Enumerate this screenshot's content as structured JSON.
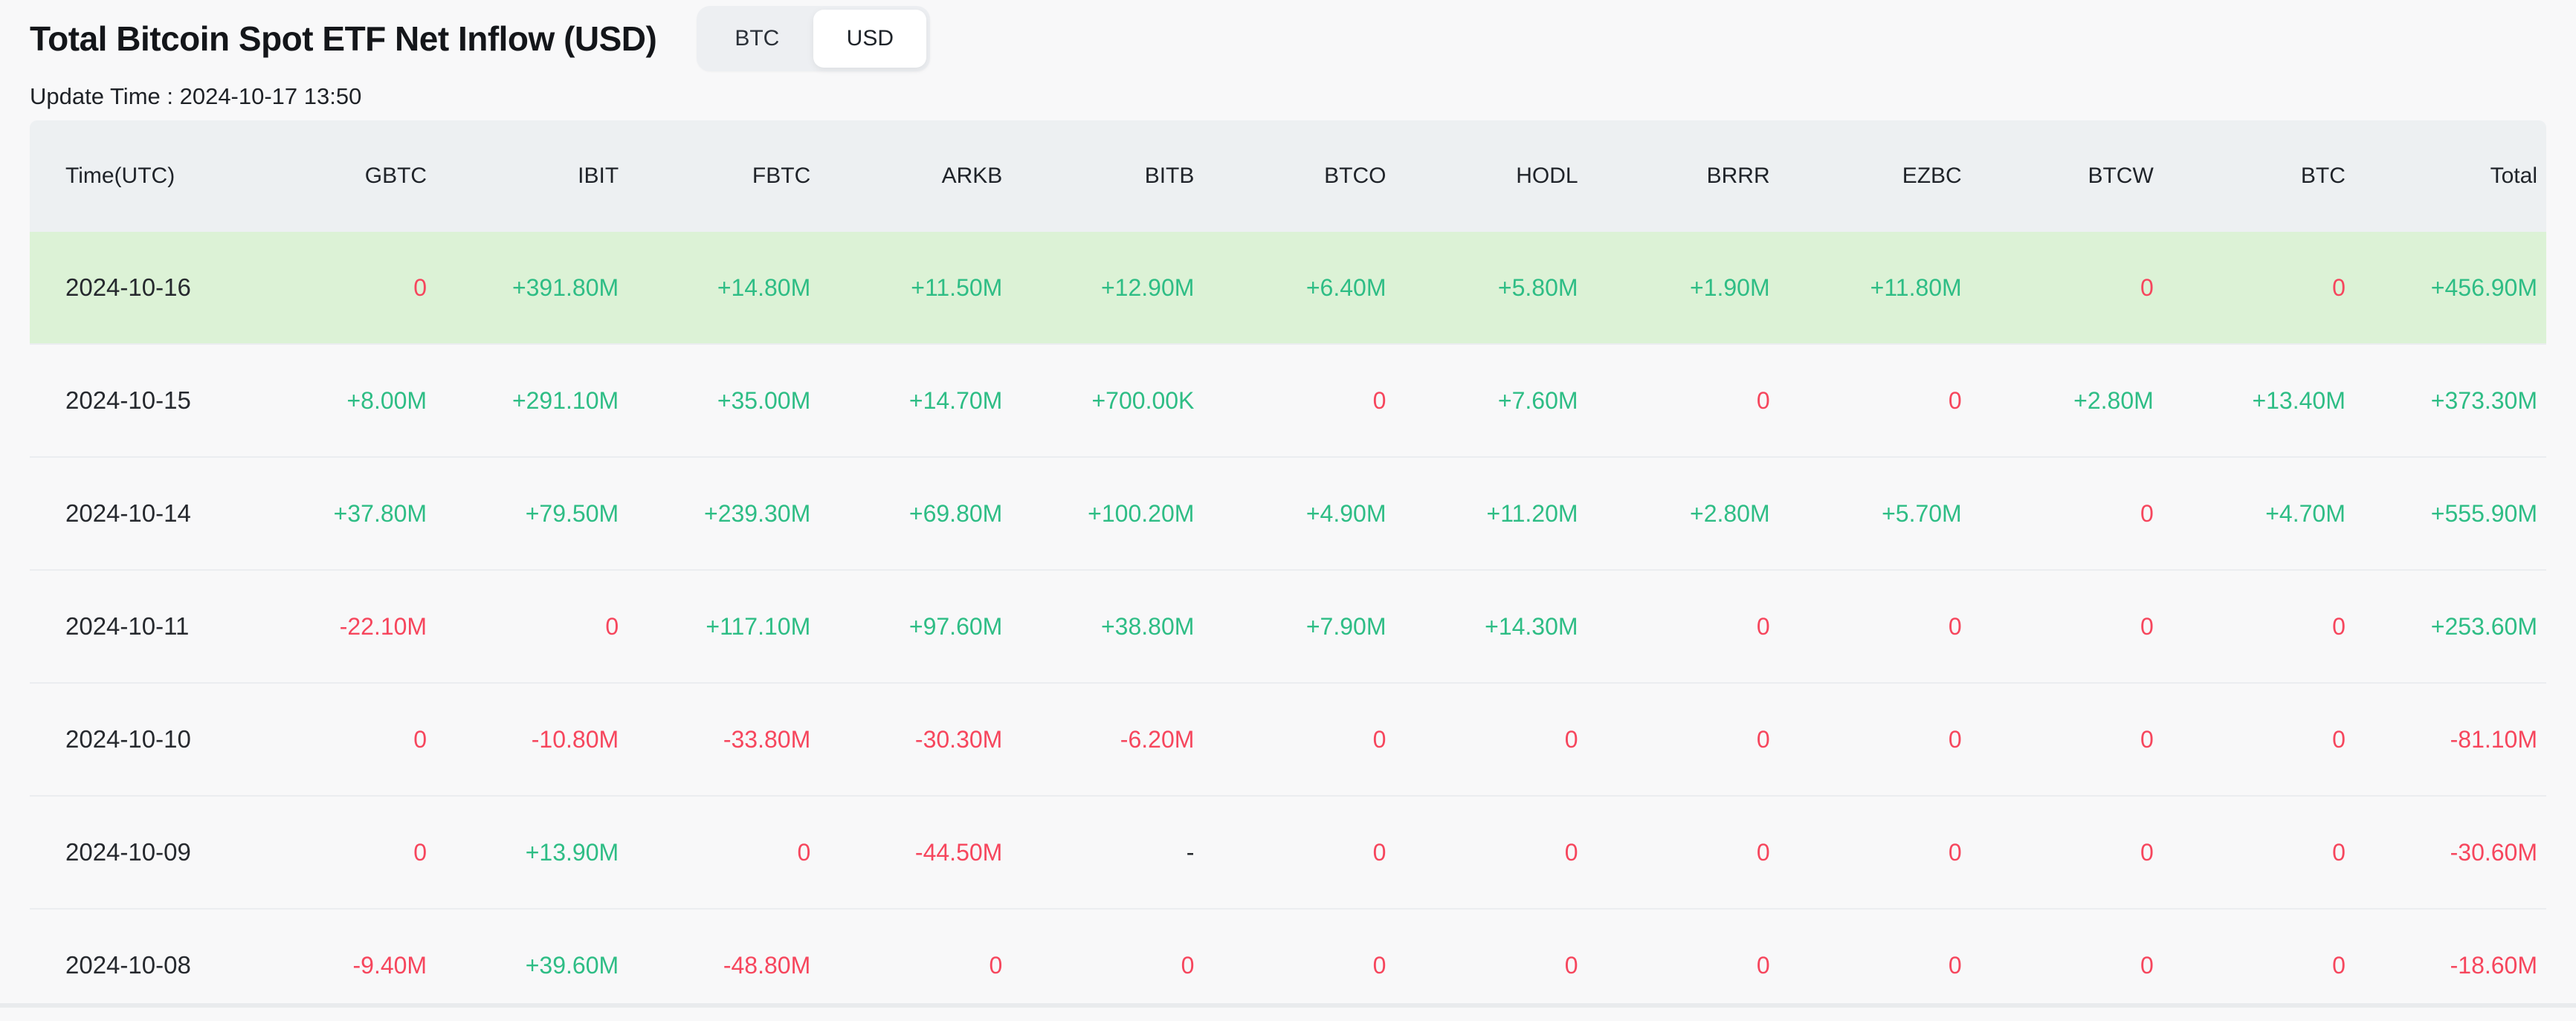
{
  "page": {
    "title": "Total Bitcoin Spot ETF Net Inflow (USD)",
    "update_time": "Update Time : 2024-10-17 13:50",
    "unit_toggle": {
      "options": [
        "BTC",
        "USD"
      ],
      "selected": "USD"
    }
  },
  "colors": {
    "positive": "#2ebd85",
    "negative": "#f6465d",
    "neutral": "#24272c",
    "highlight_row_bg": "#dcf2d6",
    "header_bg": "#edf0f2",
    "page_bg": "#f8f8f9"
  },
  "table": {
    "columns": [
      "Time(UTC)",
      "GBTC",
      "IBIT",
      "FBTC",
      "ARKB",
      "BITB",
      "BTCO",
      "HODL",
      "BRRR",
      "EZBC",
      "BTCW",
      "BTC",
      "Total"
    ],
    "rows": [
      {
        "date": "2024-10-16",
        "highlight": true,
        "cells": [
          {
            "v": "0",
            "c": "neg"
          },
          {
            "v": "+391.80M",
            "c": "pos"
          },
          {
            "v": "+14.80M",
            "c": "pos"
          },
          {
            "v": "+11.50M",
            "c": "pos"
          },
          {
            "v": "+12.90M",
            "c": "pos"
          },
          {
            "v": "+6.40M",
            "c": "pos"
          },
          {
            "v": "+5.80M",
            "c": "pos"
          },
          {
            "v": "+1.90M",
            "c": "pos"
          },
          {
            "v": "+11.80M",
            "c": "pos"
          },
          {
            "v": "0",
            "c": "neg"
          },
          {
            "v": "0",
            "c": "neg"
          },
          {
            "v": "+456.90M",
            "c": "pos"
          }
        ]
      },
      {
        "date": "2024-10-15",
        "highlight": false,
        "cells": [
          {
            "v": "+8.00M",
            "c": "pos"
          },
          {
            "v": "+291.10M",
            "c": "pos"
          },
          {
            "v": "+35.00M",
            "c": "pos"
          },
          {
            "v": "+14.70M",
            "c": "pos"
          },
          {
            "v": "+700.00K",
            "c": "pos"
          },
          {
            "v": "0",
            "c": "neg"
          },
          {
            "v": "+7.60M",
            "c": "pos"
          },
          {
            "v": "0",
            "c": "neg"
          },
          {
            "v": "0",
            "c": "neg"
          },
          {
            "v": "+2.80M",
            "c": "pos"
          },
          {
            "v": "+13.40M",
            "c": "pos"
          },
          {
            "v": "+373.30M",
            "c": "pos"
          }
        ]
      },
      {
        "date": "2024-10-14",
        "highlight": false,
        "cells": [
          {
            "v": "+37.80M",
            "c": "pos"
          },
          {
            "v": "+79.50M",
            "c": "pos"
          },
          {
            "v": "+239.30M",
            "c": "pos"
          },
          {
            "v": "+69.80M",
            "c": "pos"
          },
          {
            "v": "+100.20M",
            "c": "pos"
          },
          {
            "v": "+4.90M",
            "c": "pos"
          },
          {
            "v": "+11.20M",
            "c": "pos"
          },
          {
            "v": "+2.80M",
            "c": "pos"
          },
          {
            "v": "+5.70M",
            "c": "pos"
          },
          {
            "v": "0",
            "c": "neg"
          },
          {
            "v": "+4.70M",
            "c": "pos"
          },
          {
            "v": "+555.90M",
            "c": "pos"
          }
        ]
      },
      {
        "date": "2024-10-11",
        "highlight": false,
        "cells": [
          {
            "v": "-22.10M",
            "c": "neg"
          },
          {
            "v": "0",
            "c": "neg"
          },
          {
            "v": "+117.10M",
            "c": "pos"
          },
          {
            "v": "+97.60M",
            "c": "pos"
          },
          {
            "v": "+38.80M",
            "c": "pos"
          },
          {
            "v": "+7.90M",
            "c": "pos"
          },
          {
            "v": "+14.30M",
            "c": "pos"
          },
          {
            "v": "0",
            "c": "neg"
          },
          {
            "v": "0",
            "c": "neg"
          },
          {
            "v": "0",
            "c": "neg"
          },
          {
            "v": "0",
            "c": "neg"
          },
          {
            "v": "+253.60M",
            "c": "pos"
          }
        ]
      },
      {
        "date": "2024-10-10",
        "highlight": false,
        "cells": [
          {
            "v": "0",
            "c": "neg"
          },
          {
            "v": "-10.80M",
            "c": "neg"
          },
          {
            "v": "-33.80M",
            "c": "neg"
          },
          {
            "v": "-30.30M",
            "c": "neg"
          },
          {
            "v": "-6.20M",
            "c": "neg"
          },
          {
            "v": "0",
            "c": "neg"
          },
          {
            "v": "0",
            "c": "neg"
          },
          {
            "v": "0",
            "c": "neg"
          },
          {
            "v": "0",
            "c": "neg"
          },
          {
            "v": "0",
            "c": "neg"
          },
          {
            "v": "0",
            "c": "neg"
          },
          {
            "v": "-81.10M",
            "c": "neg"
          }
        ]
      },
      {
        "date": "2024-10-09",
        "highlight": false,
        "cells": [
          {
            "v": "0",
            "c": "neg"
          },
          {
            "v": "+13.90M",
            "c": "pos"
          },
          {
            "v": "0",
            "c": "neg"
          },
          {
            "v": "-44.50M",
            "c": "neg"
          },
          {
            "v": "-",
            "c": "neu"
          },
          {
            "v": "0",
            "c": "neg"
          },
          {
            "v": "0",
            "c": "neg"
          },
          {
            "v": "0",
            "c": "neg"
          },
          {
            "v": "0",
            "c": "neg"
          },
          {
            "v": "0",
            "c": "neg"
          },
          {
            "v": "0",
            "c": "neg"
          },
          {
            "v": "-30.60M",
            "c": "neg"
          }
        ]
      },
      {
        "date": "2024-10-08",
        "highlight": false,
        "cells": [
          {
            "v": "-9.40M",
            "c": "neg"
          },
          {
            "v": "+39.60M",
            "c": "pos"
          },
          {
            "v": "-48.80M",
            "c": "neg"
          },
          {
            "v": "0",
            "c": "neg"
          },
          {
            "v": "0",
            "c": "neg"
          },
          {
            "v": "0",
            "c": "neg"
          },
          {
            "v": "0",
            "c": "neg"
          },
          {
            "v": "0",
            "c": "neg"
          },
          {
            "v": "0",
            "c": "neg"
          },
          {
            "v": "0",
            "c": "neg"
          },
          {
            "v": "0",
            "c": "neg"
          },
          {
            "v": "-18.60M",
            "c": "neg"
          }
        ]
      }
    ]
  }
}
